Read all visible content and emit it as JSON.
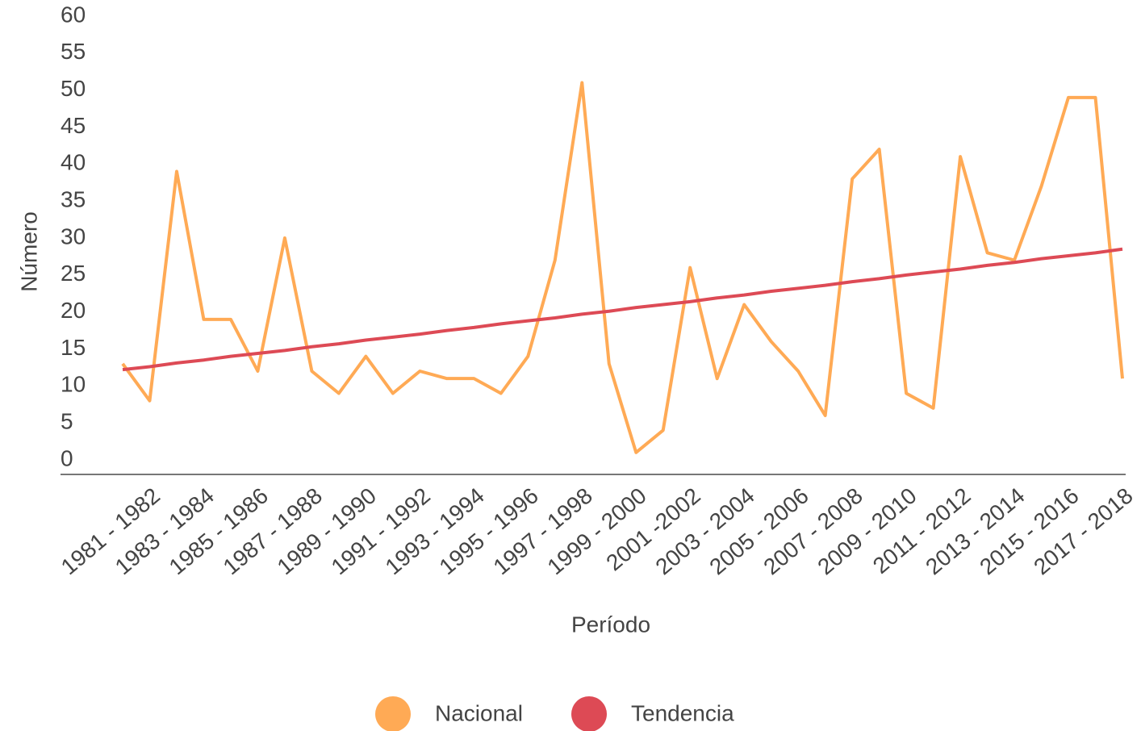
{
  "chart_data": {
    "type": "line",
    "categories": [
      "1981 - 1982",
      null,
      "1983 - 1984",
      null,
      "1985 - 1986",
      null,
      "1987 - 1988",
      null,
      "1989 - 1990",
      null,
      "1991 - 1992",
      null,
      "1993 - 1994",
      null,
      "1995 - 1996",
      null,
      "1997 - 1998",
      null,
      "1999 - 2000",
      null,
      "2001 -2002",
      null,
      "2003 - 2004",
      null,
      "2005 - 2006",
      null,
      "2007 - 2008",
      null,
      "2009 - 2010",
      null,
      "2011 - 2012",
      null,
      "2013 - 2014",
      null,
      "2015 - 2016",
      null,
      "2017 - 2018",
      null
    ],
    "series": [
      {
        "name": "Nacional",
        "color": "#ffaa55",
        "values": [
          13,
          8,
          39,
          19,
          19,
          12,
          30,
          12,
          9,
          14,
          9,
          12,
          11,
          11,
          9,
          14,
          27,
          51,
          13,
          1,
          4,
          26,
          11,
          21,
          16,
          12,
          6,
          38,
          42,
          9,
          7,
          41,
          28,
          27,
          37,
          49,
          49,
          11
        ]
      },
      {
        "name": "Tendencia",
        "color": "#dd4a55",
        "values": [
          12.2,
          12.6,
          13.1,
          13.5,
          14.0,
          14.4,
          14.8,
          15.3,
          15.7,
          16.2,
          16.6,
          17.0,
          17.5,
          17.9,
          18.4,
          18.8,
          19.2,
          19.7,
          20.1,
          20.6,
          21.0,
          21.4,
          21.9,
          22.3,
          22.8,
          23.2,
          23.6,
          24.1,
          24.5,
          25.0,
          25.4,
          25.8,
          26.3,
          26.7,
          27.2,
          27.6,
          28.0,
          28.5
        ]
      }
    ],
    "x_label": "Período",
    "y_label": "Número",
    "ylim": [
      0,
      60
    ],
    "yticks": [
      0,
      5,
      10,
      15,
      20,
      25,
      30,
      35,
      40,
      45,
      50,
      55,
      60
    ],
    "grid": false
  }
}
